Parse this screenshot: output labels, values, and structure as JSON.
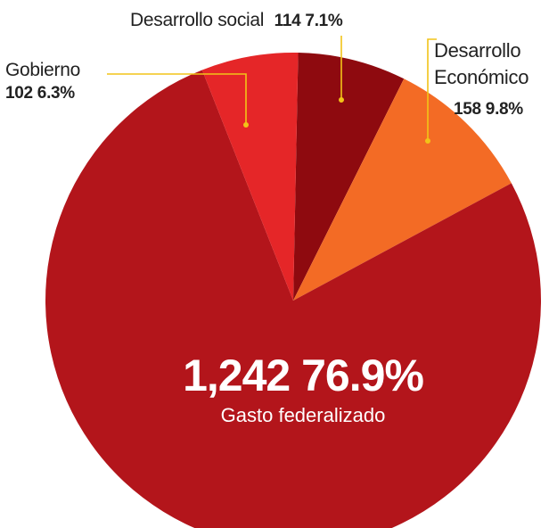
{
  "chart_data": {
    "type": "pie",
    "slices": [
      {
        "label": "Gasto federalizado",
        "value": 1242,
        "percent": "76.9%",
        "value_text": "1,242",
        "color": "#b3151b"
      },
      {
        "label": "Gobierno",
        "value": 102,
        "percent": "6.3%",
        "value_text": "102",
        "color": "#e52628"
      },
      {
        "label": "Desarrollo social",
        "value": 114,
        "percent": "7.1%",
        "value_text": "114",
        "color": "#8e0a0f"
      },
      {
        "label": "Desarrollo\nEconómico",
        "value": 158,
        "percent": "9.8%",
        "value_text": "158",
        "color": "#f36b25"
      }
    ],
    "leader_color": "#f2c318"
  }
}
